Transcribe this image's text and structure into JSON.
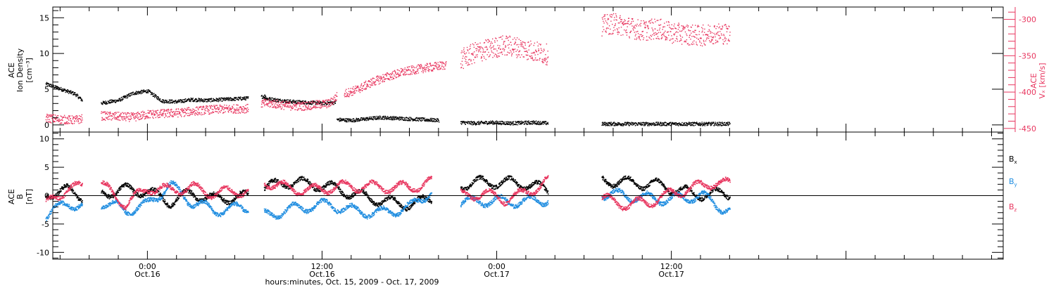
{
  "colors": {
    "black": "#000000",
    "pink": "#e8365f",
    "blue": "#1f8de0"
  },
  "x_axis": {
    "label": "hours:minutes, Oct. 15, 2009 - Oct. 17, 2009",
    "range_hours": [
      -6.5,
      58.8
    ],
    "major_ticks": [
      {
        "hour": 0,
        "time": "0:00",
        "date": "Oct.16"
      },
      {
        "hour": 12,
        "time": "12:00",
        "date": "Oct.16"
      },
      {
        "hour": 24,
        "time": "0:00",
        "date": "Oct.17"
      },
      {
        "hour": 36,
        "time": "12:00",
        "date": "Oct.17"
      }
    ]
  },
  "chart_data": [
    {
      "type": "scatter",
      "title": "",
      "ylabel_left": [
        "ACE",
        "Ion Density",
        "[cm⁻³]"
      ],
      "ylabel_right": [
        "ACE",
        "Vₓ [km/s]"
      ],
      "ylim_left": [
        -1,
        16.5
      ],
      "ylim_right": [
        -455,
        -283
      ],
      "left_ticks": [
        0,
        5,
        10,
        15
      ],
      "right_ticks": [
        -450,
        -400,
        -350,
        -300
      ],
      "series": [
        {
          "color": "black",
          "axis": "left",
          "segments": [
            {
              "x": [
                -7.0,
                -6.0,
                -5.0,
                -4.5
              ],
              "y": [
                5.8,
                5.1,
                4.4,
                3.5
              ]
            },
            {
              "x": [
                -3.2,
                -2.0,
                -1.0,
                0.0,
                1.0,
                2.0,
                3.0,
                4.0,
                5.0,
                6.9
              ],
              "y": [
                3.1,
                3.5,
                4.5,
                4.8,
                3.4,
                3.3,
                3.6,
                3.5,
                3.6,
                3.8
              ]
            },
            {
              "x": [
                7.8,
                8.1
              ],
              "y": [
                4.0,
                4.1
              ]
            },
            {
              "x": [
                8.0,
                9.0,
                10.0,
                11.0,
                12.0,
                12.9
              ],
              "y": [
                3.8,
                3.5,
                3.3,
                3.2,
                3.1,
                3.2
              ]
            },
            {
              "x": [
                13.0,
                14.0,
                15.0,
                16.0,
                17.0,
                18.0,
                19.0,
                20.0
              ],
              "y": [
                0.8,
                0.7,
                0.9,
                1.1,
                1.0,
                0.9,
                0.8,
                0.7
              ]
            },
            {
              "x": [
                21.5,
                22.5,
                23.5,
                25.0,
                26.5,
                27.5
              ],
              "y": [
                0.4,
                0.3,
                0.4,
                0.3,
                0.4,
                0.3
              ]
            },
            {
              "x": [
                31.2,
                33.0,
                35.0,
                37.0,
                39.0,
                40.0
              ],
              "y": [
                0.2,
                0.2,
                0.2,
                0.2,
                0.2,
                0.2
              ]
            }
          ]
        },
        {
          "color": "pink",
          "axis": "right",
          "segments": [
            {
              "x": [
                -7.0,
                -6.0,
                -5.0,
                -4.5
              ],
              "y": [
                -435,
                -437,
                -438,
                -436
              ]
            },
            {
              "x": [
                -3.2,
                -2.0,
                -1.0,
                0.0,
                1.0,
                2.0,
                3.0,
                4.0,
                5.0,
                6.9
              ],
              "y": [
                -432,
                -433,
                -434,
                -430,
                -429,
                -428,
                -426,
                -424,
                -423,
                -422
              ]
            },
            {
              "x": [
                7.8,
                8.5,
                9.5,
                10.5,
                11.5,
                12.5,
                13.0
              ],
              "y": [
                -415,
                -415,
                -418,
                -419,
                -417,
                -415,
                -405
              ]
            },
            {
              "x": [
                13.5,
                14.5,
                15.5,
                16.5,
                17.5,
                18.5,
                19.5,
                20.5
              ],
              "y": [
                -402,
                -395,
                -385,
                -378,
                -372,
                -368,
                -365,
                -362
              ]
            },
            {
              "x": [
                21.5,
                22.5,
                23.5,
                24.5,
                25.5,
                26.5,
                27.5
              ],
              "y": [
                -355,
                -345,
                -340,
                -335,
                -338,
                -343,
                -348
              ]
            },
            {
              "x": [
                31.2,
                32.0,
                33.0,
                34.0,
                35.0,
                36.0,
                37.0,
                38.0,
                39.0,
                40.0
              ],
              "y": [
                -308,
                -305,
                -310,
                -315,
                -312,
                -318,
                -320,
                -322,
                -318,
                -320
              ]
            }
          ]
        }
      ]
    },
    {
      "type": "scatter",
      "title": "",
      "ylabel_left": [
        "ACE",
        "B",
        "[nT]"
      ],
      "ylim": [
        -11.2,
        11.2
      ],
      "left_ticks": [
        -10,
        -5,
        0,
        5,
        10
      ],
      "legend": [
        {
          "label": "B",
          "sub": "x",
          "color": "black"
        },
        {
          "label": "B",
          "sub": "y",
          "color": "blue"
        },
        {
          "label": "B",
          "sub": "z",
          "color": "pink"
        }
      ],
      "series": [
        {
          "name": "Bx",
          "color": "black",
          "segments": [
            {
              "x": [
                -7.0,
                -5.5,
                -4.5
              ],
              "y": [
                0.5,
                1.0,
                0.0
              ]
            },
            {
              "x": [
                -3.2,
                -1.5,
                0.0,
                1.5,
                3.0,
                4.5,
                6.9
              ],
              "y": [
                0.5,
                1.2,
                0.8,
                -1.0,
                0.5,
                -0.5,
                0.0
              ]
            },
            {
              "x": [
                8.0,
                9.5,
                11.0,
                12.5,
                14.0,
                16.0,
                18.0,
                19.5
              ],
              "y": [
                1.5,
                2.5,
                2.2,
                1.6,
                0.5,
                -0.8,
                -1.5,
                -0.5
              ]
            },
            {
              "x": [
                21.5,
                23.0,
                24.5,
                26.0,
                27.5
              ],
              "y": [
                2.0,
                2.5,
                2.4,
                2.2,
                1.0
              ]
            },
            {
              "x": [
                31.2,
                33.0,
                35.0,
                36.5,
                38.0,
                40.0
              ],
              "y": [
                2.8,
                2.4,
                2.0,
                1.0,
                0.3,
                0.5
              ]
            }
          ]
        },
        {
          "name": "By",
          "color": "blue",
          "segments": [
            {
              "x": [
                -7.0,
                -5.5,
                -4.5
              ],
              "y": [
                -3.5,
                -1.0,
                -2.0
              ]
            },
            {
              "x": [
                -3.2,
                -1.5,
                0.0,
                1.5,
                3.0,
                4.5,
                6.9
              ],
              "y": [
                -1.0,
                -2.5,
                -1.5,
                2.0,
                -1.0,
                -2.5,
                -2.0
              ]
            },
            {
              "x": [
                8.0,
                9.5,
                11.0,
                12.5,
                14.0,
                16.0,
                18.0,
                19.5
              ],
              "y": [
                -3.5,
                -2.5,
                -1.8,
                -1.5,
                -2.5,
                -3.0,
                -2.0,
                1.0
              ]
            },
            {
              "x": [
                21.5,
                23.0,
                24.5,
                26.0,
                27.5
              ],
              "y": [
                -1.2,
                -0.8,
                -0.9,
                -1.0,
                -0.5
              ]
            },
            {
              "x": [
                31.2,
                33.0,
                35.0,
                36.5,
                38.0,
                39.0,
                40.0
              ],
              "y": [
                0.5,
                0.0,
                -0.5,
                -0.5,
                0.2,
                -1.5,
                -2.5
              ]
            }
          ]
        },
        {
          "name": "Bz",
          "color": "pink",
          "segments": [
            {
              "x": [
                -7.0,
                -5.5,
                -4.5
              ],
              "y": [
                -1.5,
                1.5,
                1.5
              ]
            },
            {
              "x": [
                -3.2,
                -1.5,
                0.0,
                1.5,
                3.0,
                4.5,
                6.9
              ],
              "y": [
                2.0,
                -1.5,
                1.5,
                1.0,
                1.5,
                0.5,
                1.0
              ]
            },
            {
              "x": [
                8.0,
                9.5,
                11.0,
                12.5,
                14.0,
                16.0,
                18.0,
                19.5
              ],
              "y": [
                2.5,
                1.5,
                1.0,
                1.5,
                1.8,
                1.6,
                1.5,
                2.5
              ]
            },
            {
              "x": [
                21.5,
                23.0,
                24.5,
                26.0,
                27.5
              ],
              "y": [
                0.0,
                0.5,
                -0.5,
                0.5,
                2.8
              ]
            },
            {
              "x": [
                31.2,
                33.0,
                34.5,
                36.0,
                37.5,
                39.0,
                40.0
              ],
              "y": [
                -0.5,
                -1.5,
                -1.0,
                0.5,
                1.5,
                2.5,
                2.0
              ]
            }
          ]
        }
      ]
    }
  ]
}
